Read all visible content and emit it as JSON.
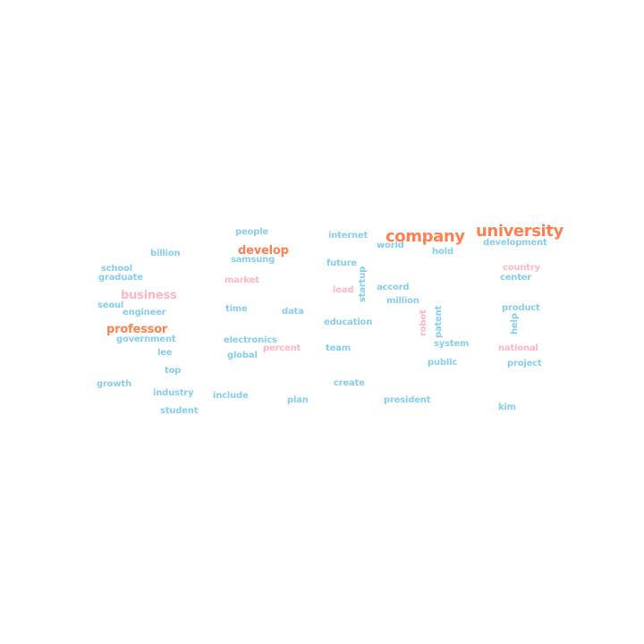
{
  "colors": {
    "high": "#ff7f50",
    "mid": "#ffb6c1",
    "low": "#87ceeb",
    "background": "#ffffff"
  },
  "words": {
    "university": "university",
    "company": "company",
    "professor": "professor",
    "develop": "develop",
    "business": "business",
    "market": "market",
    "lead": "lead",
    "percent": "percent",
    "robot": "robot",
    "country": "country",
    "national": "national",
    "people": "people",
    "billion": "billion",
    "samsung": "samsung",
    "internet": "internet",
    "world": "world",
    "hold": "hold",
    "development": "development",
    "school": "school",
    "graduate": "graduate",
    "future": "future",
    "center": "center",
    "startup": "startup",
    "accord": "accord",
    "seoul": "seoul",
    "engineer": "engineer",
    "time": "time",
    "data": "data",
    "million": "million",
    "product": "product",
    "patent": "patent",
    "education": "education",
    "help": "help",
    "government": "government",
    "electronics": "electronics",
    "system": "system",
    "lee": "lee",
    "global": "global",
    "team": "team",
    "public": "public",
    "project": "project",
    "top": "top",
    "growth": "growth",
    "create": "create",
    "industry": "industry",
    "include": "include",
    "plan": "plan",
    "president": "president",
    "kim": "kim",
    "student": "student"
  }
}
